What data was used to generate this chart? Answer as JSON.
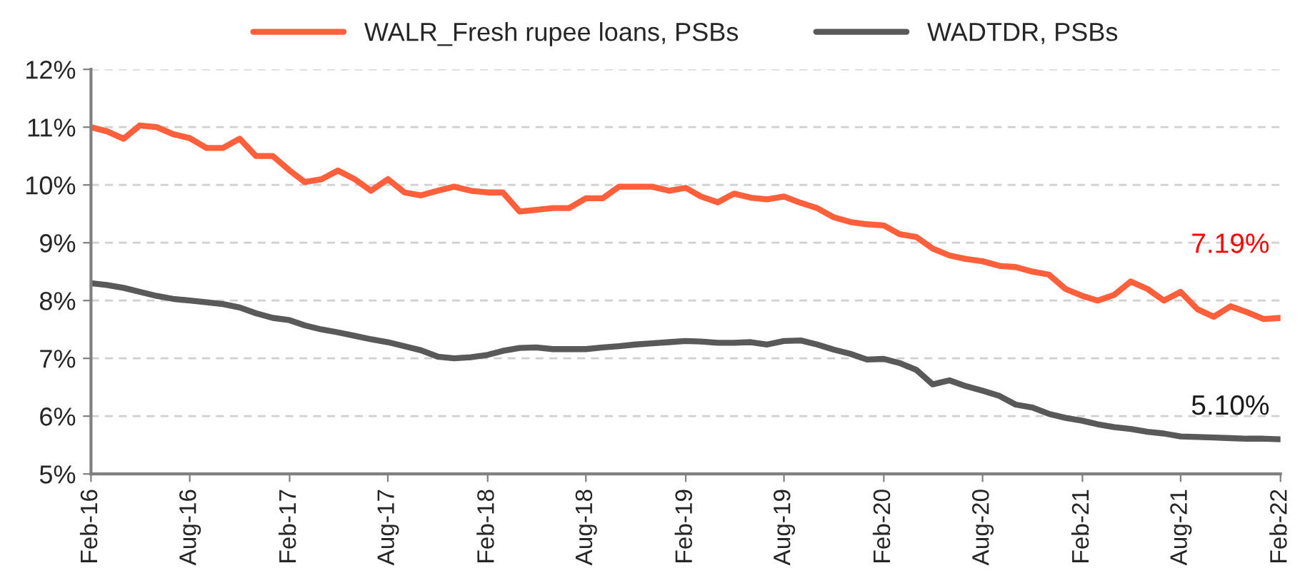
{
  "chart_data": {
    "type": "line",
    "x": [
      "2016-02",
      "2016-03",
      "2016-04",
      "2016-05",
      "2016-06",
      "2016-07",
      "2016-08",
      "2016-09",
      "2016-10",
      "2016-11",
      "2016-12",
      "2017-01",
      "2017-02",
      "2017-03",
      "2017-04",
      "2017-05",
      "2017-06",
      "2017-07",
      "2017-08",
      "2017-09",
      "2017-10",
      "2017-11",
      "2017-12",
      "2018-01",
      "2018-02",
      "2018-03",
      "2018-04",
      "2018-05",
      "2018-06",
      "2018-07",
      "2018-08",
      "2018-09",
      "2018-10",
      "2018-11",
      "2018-12",
      "2019-01",
      "2019-02",
      "2019-03",
      "2019-04",
      "2019-05",
      "2019-06",
      "2019-07",
      "2019-08",
      "2019-09",
      "2019-10",
      "2019-11",
      "2019-12",
      "2020-01",
      "2020-02",
      "2020-03",
      "2020-04",
      "2020-05",
      "2020-06",
      "2020-07",
      "2020-08",
      "2020-09",
      "2020-10",
      "2020-11",
      "2020-12",
      "2021-01",
      "2021-02",
      "2021-03",
      "2021-04",
      "2021-05",
      "2021-06",
      "2021-07",
      "2021-08",
      "2021-09",
      "2021-10",
      "2021-11",
      "2021-12",
      "2022-01",
      "2022-02"
    ],
    "series": [
      {
        "name": "WALR_Fresh rupee loans, PSBs",
        "color": "#ff5f3a",
        "values": [
          11.0,
          10.93,
          10.8,
          11.03,
          11.0,
          10.88,
          10.81,
          10.64,
          10.64,
          10.8,
          10.5,
          10.5,
          10.25,
          10.05,
          10.1,
          10.25,
          10.1,
          9.9,
          10.1,
          9.87,
          9.82,
          9.9,
          9.97,
          9.9,
          9.87,
          9.87,
          9.54,
          9.57,
          9.6,
          9.6,
          9.77,
          9.77,
          9.97,
          9.97,
          9.97,
          9.9,
          9.95,
          9.8,
          9.7,
          9.85,
          9.78,
          9.75,
          9.8,
          9.69,
          9.6,
          9.44,
          9.36,
          9.32,
          9.3,
          9.15,
          9.1,
          8.9,
          8.78,
          8.72,
          8.68,
          8.6,
          8.58,
          8.5,
          8.45,
          8.2,
          8.08,
          8.0,
          8.1,
          8.33,
          8.2,
          8.0,
          8.15,
          7.85,
          7.72,
          7.9,
          7.8,
          7.68,
          7.7
        ]
      },
      {
        "name": "WADTDR, PSBs",
        "color": "#595959",
        "values": [
          8.3,
          8.27,
          8.22,
          8.15,
          8.08,
          8.03,
          8.0,
          7.97,
          7.94,
          7.88,
          7.78,
          7.7,
          7.66,
          7.57,
          7.5,
          7.45,
          7.39,
          7.33,
          7.28,
          7.21,
          7.14,
          7.03,
          7.0,
          7.02,
          7.06,
          7.13,
          7.18,
          7.19,
          7.16,
          7.16,
          7.16,
          7.19,
          7.21,
          7.24,
          7.26,
          7.28,
          7.3,
          7.29,
          7.27,
          7.27,
          7.28,
          7.24,
          7.3,
          7.31,
          7.24,
          7.15,
          7.08,
          6.98,
          6.99,
          6.92,
          6.8,
          6.55,
          6.62,
          6.52,
          6.44,
          6.35,
          6.2,
          6.15,
          6.04,
          5.97,
          5.92,
          5.86,
          5.81,
          5.78,
          5.73,
          5.7,
          5.65,
          5.64,
          5.63,
          5.62,
          5.61,
          5.61,
          5.6
        ]
      }
    ],
    "xlim": [
      "2016-02",
      "2022-02"
    ],
    "xticks": [
      {
        "value": "2016-02",
        "label": "Feb-16"
      },
      {
        "value": "2016-08",
        "label": "Aug-16"
      },
      {
        "value": "2017-02",
        "label": "Feb-17"
      },
      {
        "value": "2017-08",
        "label": "Aug-17"
      },
      {
        "value": "2018-02",
        "label": "Feb-18"
      },
      {
        "value": "2018-08",
        "label": "Aug-18"
      },
      {
        "value": "2019-02",
        "label": "Feb-19"
      },
      {
        "value": "2019-08",
        "label": "Aug-19"
      },
      {
        "value": "2020-02",
        "label": "Feb-20"
      },
      {
        "value": "2020-08",
        "label": "Aug-20"
      },
      {
        "value": "2021-02",
        "label": "Feb-21"
      },
      {
        "value": "2021-08",
        "label": "Aug-21"
      },
      {
        "value": "2022-02",
        "label": "Feb-22"
      }
    ],
    "ylim": [
      5,
      12
    ],
    "yticks": [
      {
        "value": 5,
        "label": "5%"
      },
      {
        "value": 6,
        "label": "6%"
      },
      {
        "value": 7,
        "label": "7%"
      },
      {
        "value": 8,
        "label": "8%"
      },
      {
        "value": 9,
        "label": "9%"
      },
      {
        "value": 10,
        "label": "10%"
      },
      {
        "value": 11,
        "label": "11%"
      },
      {
        "value": 12,
        "label": "12%"
      }
    ],
    "annotations": [
      "7.19%",
      "5.10%"
    ],
    "grid": "y",
    "legend": "top",
    "line_style": "solid",
    "marker": "none"
  }
}
